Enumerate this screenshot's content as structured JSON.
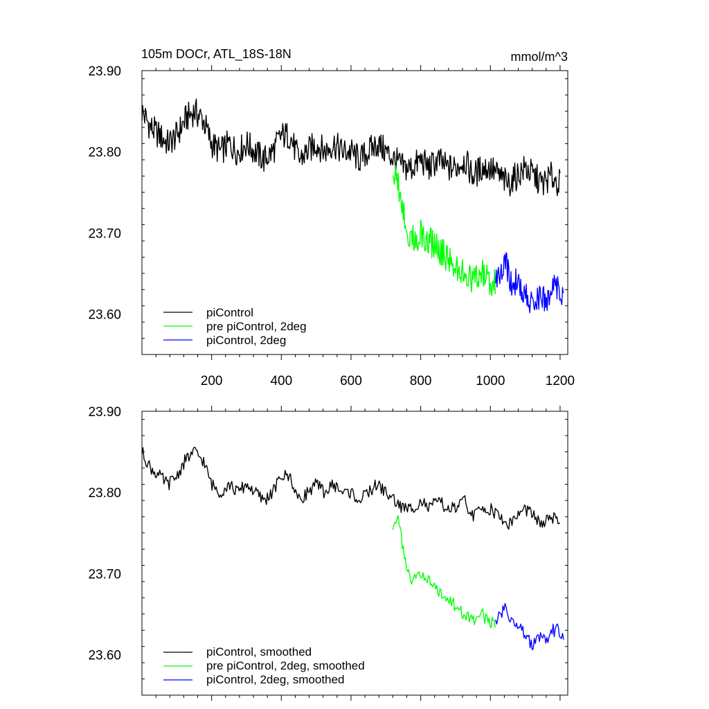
{
  "chart_data": [
    {
      "type": "line",
      "title_left": "105m DOCr, ATL_18S-18N",
      "title_right": "mmol/m^3",
      "xlim": [
        0,
        1222
      ],
      "ylim": [
        23.55,
        23.9
      ],
      "x_ticks": [
        200,
        400,
        600,
        800,
        1000,
        1200
      ],
      "x_tick_labels": [
        "200",
        "400",
        "600",
        "800",
        "1000",
        "1200"
      ],
      "y_ticks": [
        23.6,
        23.7,
        23.8,
        23.9
      ],
      "y_tick_labels": [
        "23.60",
        "23.70",
        "23.80",
        "23.90"
      ],
      "legend": [
        "piControl",
        "pre piControl, 2deg",
        "piControl, 2deg"
      ],
      "series": [
        {
          "name": "piControl",
          "color": "#000000",
          "x": [
            0,
            25,
            50,
            75,
            100,
            125,
            150,
            175,
            200,
            225,
            250,
            275,
            300,
            325,
            350,
            375,
            400,
            425,
            450,
            475,
            500,
            525,
            550,
            575,
            600,
            625,
            650,
            675,
            700,
            725,
            750,
            775,
            800,
            825,
            850,
            875,
            900,
            925,
            950,
            975,
            1000,
            1025,
            1050,
            1075,
            1100,
            1125,
            1150,
            1175,
            1200
          ],
          "values": [
            23.85,
            23.83,
            23.82,
            23.81,
            23.82,
            23.84,
            23.85,
            23.84,
            23.81,
            23.8,
            23.81,
            23.8,
            23.81,
            23.8,
            23.79,
            23.8,
            23.82,
            23.82,
            23.79,
            23.8,
            23.81,
            23.8,
            23.81,
            23.8,
            23.8,
            23.79,
            23.8,
            23.81,
            23.8,
            23.79,
            23.78,
            23.78,
            23.79,
            23.78,
            23.79,
            23.78,
            23.78,
            23.79,
            23.77,
            23.78,
            23.78,
            23.77,
            23.76,
            23.77,
            23.78,
            23.77,
            23.76,
            23.77,
            23.76
          ]
        },
        {
          "name": "pre piControl, 2deg",
          "color": "#00ff00",
          "x": [
            720,
            735,
            750,
            765,
            780,
            800,
            825,
            850,
            875,
            900,
            925,
            950,
            975,
            1000,
            1015
          ],
          "values": [
            23.78,
            23.76,
            23.73,
            23.7,
            23.69,
            23.7,
            23.69,
            23.68,
            23.67,
            23.66,
            23.65,
            23.64,
            23.65,
            23.64,
            23.64
          ]
        },
        {
          "name": "piControl, 2deg",
          "color": "#0000ff",
          "x": [
            1015,
            1030,
            1045,
            1060,
            1075,
            1090,
            1105,
            1120,
            1135,
            1150,
            1165,
            1180,
            1195,
            1210
          ],
          "values": [
            23.64,
            23.65,
            23.66,
            23.64,
            23.64,
            23.63,
            23.62,
            23.61,
            23.62,
            23.62,
            23.62,
            23.63,
            23.63,
            23.62
          ]
        }
      ]
    },
    {
      "type": "line",
      "xlim": [
        0,
        1222
      ],
      "ylim": [
        23.55,
        23.9
      ],
      "y_ticks": [
        23.6,
        23.7,
        23.8,
        23.9
      ],
      "y_tick_labels": [
        "23.60",
        "23.70",
        "23.80",
        "23.90"
      ],
      "legend": [
        "piControl, smoothed",
        "pre piControl, 2deg, smoothed",
        "piControl, 2deg, smoothed"
      ],
      "series": [
        {
          "name": "piControl, smoothed",
          "color": "#000000",
          "x": [
            0,
            25,
            50,
            75,
            100,
            125,
            150,
            175,
            200,
            225,
            250,
            275,
            300,
            325,
            350,
            375,
            400,
            425,
            450,
            475,
            500,
            525,
            550,
            575,
            600,
            625,
            650,
            675,
            700,
            725,
            750,
            775,
            800,
            825,
            850,
            875,
            900,
            925,
            950,
            975,
            1000,
            1025,
            1050,
            1075,
            1100,
            1125,
            1150,
            1175,
            1200
          ],
          "values": [
            23.85,
            23.83,
            23.82,
            23.81,
            23.82,
            23.84,
            23.85,
            23.84,
            23.81,
            23.8,
            23.81,
            23.8,
            23.81,
            23.8,
            23.79,
            23.8,
            23.82,
            23.82,
            23.79,
            23.8,
            23.81,
            23.8,
            23.81,
            23.8,
            23.8,
            23.79,
            23.8,
            23.81,
            23.8,
            23.79,
            23.78,
            23.78,
            23.79,
            23.78,
            23.79,
            23.78,
            23.78,
            23.79,
            23.77,
            23.78,
            23.78,
            23.77,
            23.76,
            23.77,
            23.78,
            23.77,
            23.76,
            23.77,
            23.76
          ]
        },
        {
          "name": "pre piControl, 2deg, smoothed",
          "color": "#00ff00",
          "x": [
            720,
            735,
            750,
            765,
            780,
            800,
            825,
            850,
            875,
            900,
            925,
            950,
            975,
            1000,
            1015
          ],
          "values": [
            23.76,
            23.77,
            23.73,
            23.7,
            23.69,
            23.7,
            23.69,
            23.68,
            23.67,
            23.66,
            23.65,
            23.64,
            23.65,
            23.64,
            23.64
          ]
        },
        {
          "name": "piControl, 2deg, smoothed",
          "color": "#0000ff",
          "x": [
            1015,
            1030,
            1045,
            1060,
            1075,
            1090,
            1105,
            1120,
            1135,
            1150,
            1165,
            1180,
            1195,
            1210
          ],
          "values": [
            23.64,
            23.65,
            23.66,
            23.64,
            23.64,
            23.63,
            23.62,
            23.61,
            23.62,
            23.62,
            23.62,
            23.63,
            23.63,
            23.62
          ]
        }
      ]
    }
  ]
}
